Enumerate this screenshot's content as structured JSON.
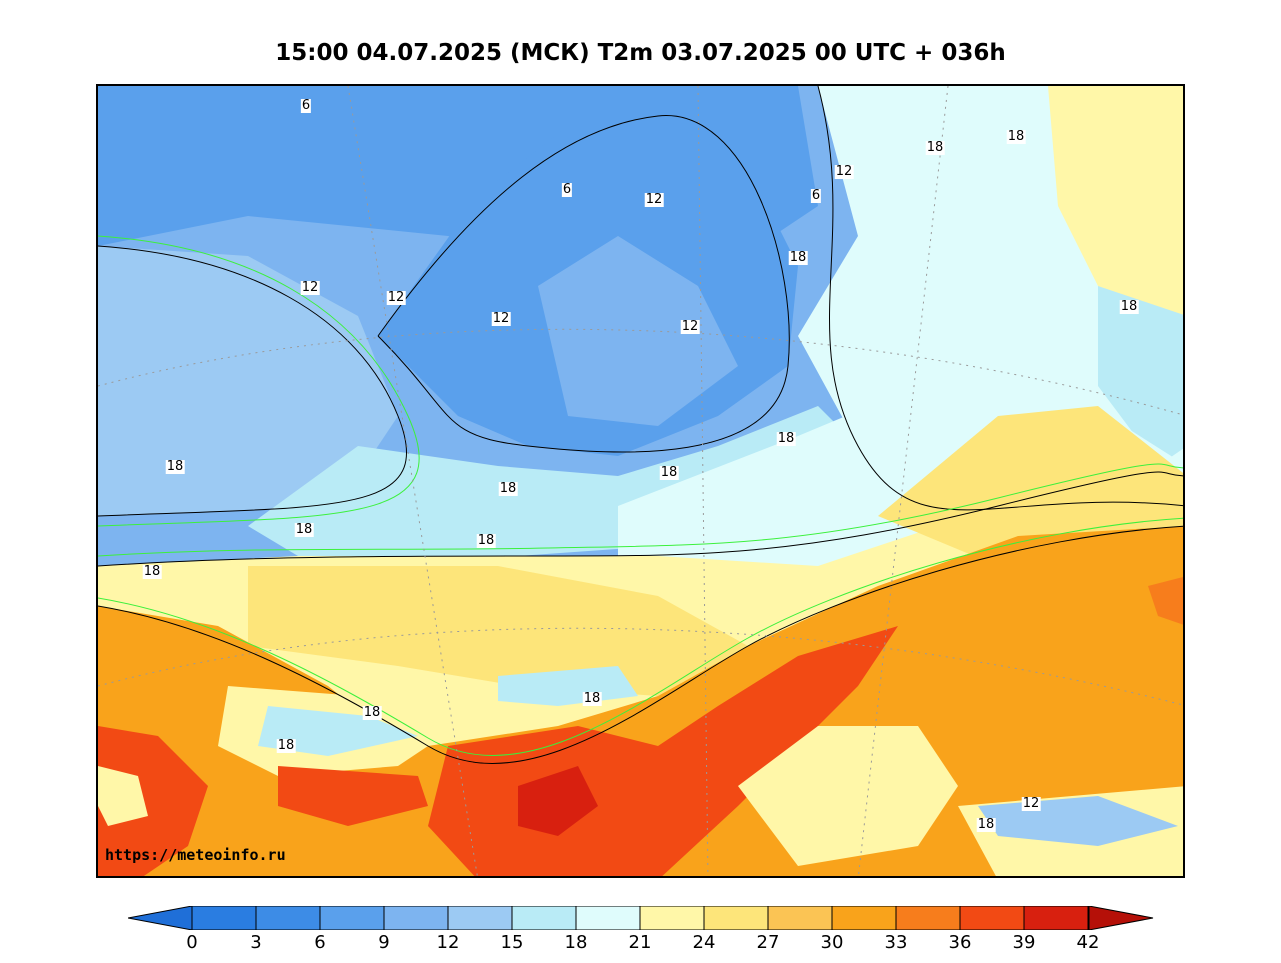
{
  "title": "15:00 04.07.2025 (МСК) T2m 03.07.2025 00 UTC + 036h",
  "credit": "https://meteoinfo.ru",
  "contour_labels": [
    "6",
    "6",
    "6",
    "12",
    "12",
    "12",
    "12",
    "12",
    "12",
    "12",
    "18",
    "18",
    "18",
    "18",
    "18",
    "18",
    "18",
    "18",
    "18",
    "18",
    "18",
    "18",
    "18",
    "18",
    "18"
  ],
  "colorbar": {
    "ticks": [
      "0",
      "3",
      "6",
      "9",
      "12",
      "15",
      "18",
      "21",
      "24",
      "27",
      "30",
      "33",
      "36",
      "39",
      "42"
    ],
    "colors": [
      "#2a7de1",
      "#3d8ce6",
      "#5aa0ec",
      "#7db4f0",
      "#9ccaf3",
      "#b9ebf6",
      "#dffcfc",
      "#fff7a8",
      "#fde57a",
      "#fbc454",
      "#f9a31b",
      "#f77d1c",
      "#f24a14",
      "#d8200f"
    ],
    "under_color": "#1f6fd8",
    "over_color": "#b51008"
  },
  "map_colors": {
    "ocean_cold": "#7db4f0",
    "ocean_mid": "#9ccaf3",
    "scandinavia": "#5aa0ec",
    "cool_land": "#b9ebf6",
    "mild": "#dffcfc",
    "warm": "#fff7a8",
    "warmer": "#fde57a",
    "hot": "#f9a31b",
    "very_hot": "#f24a14",
    "extreme": "#d8200f"
  }
}
